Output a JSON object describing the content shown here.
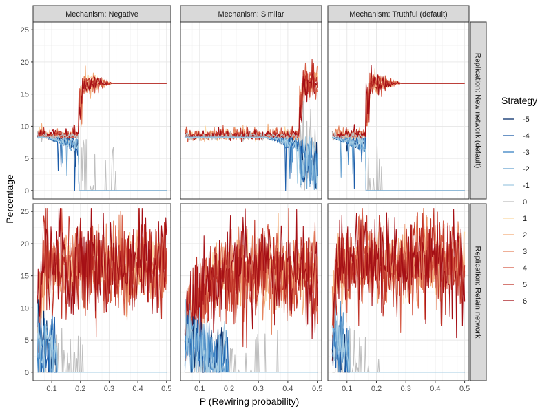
{
  "chart_data": {
    "type": "line",
    "xlabel": "P (Rewiring probability)",
    "ylabel": "Percentage",
    "xlim": [
      0.035,
      0.515
    ],
    "ylim": [
      -1.3,
      26.2
    ],
    "x_ticks": [
      0.1,
      0.2,
      0.3,
      0.4,
      0.5
    ],
    "x_tick_labels": [
      "0.1",
      "0.2",
      "0.3",
      "0.4",
      "0.5"
    ],
    "y_ticks": [
      0,
      5,
      10,
      15,
      20,
      25
    ],
    "y_tick_labels": [
      "0",
      "5",
      "10",
      "15",
      "20",
      "25"
    ],
    "x_sample": {
      "start": 0.05,
      "end": 0.5,
      "step": 0.0025
    },
    "grid": true,
    "legend": {
      "title": "Strategy",
      "position": "right",
      "entries": [
        {
          "label": "-5",
          "color": "#08306b"
        },
        {
          "label": "-4",
          "color": "#1c5ca8"
        },
        {
          "label": "-3",
          "color": "#3a82c4"
        },
        {
          "label": "-2",
          "color": "#6aa3d1"
        },
        {
          "label": "-1",
          "color": "#a6cde3"
        },
        {
          "label": "0",
          "color": "#bfbfbf"
        },
        {
          "label": "1",
          "color": "#fbd9a4"
        },
        {
          "label": "2",
          "color": "#f3ae7b"
        },
        {
          "label": "3",
          "color": "#e68560"
        },
        {
          "label": "4",
          "color": "#d65c47"
        },
        {
          "label": "5",
          "color": "#c03428"
        },
        {
          "label": "6",
          "color": "#a50f15"
        }
      ]
    },
    "col_facets": [
      "Mechanism: Negative",
      "Mechanism: Similar",
      "Mechanism: Truthful (default)"
    ],
    "row_facets": [
      "Replication: New network (default)",
      "Replication: Retain network"
    ],
    "panel_models": [
      [
        {
          "mechanism": "negative",
          "dropout": 0.195,
          "plateau": 16.67,
          "zeroed_after": 0.33
        },
        {
          "mechanism": "similar",
          "dropout": 0.44,
          "plateau": 16.67,
          "zeroed_after": 0.5
        },
        {
          "mechanism": "truthful",
          "dropout": 0.165,
          "plateau": 16.67,
          "zeroed_after": 0.23
        }
      ],
      [
        {
          "mechanism": "negative",
          "negatives_to_zero": 0.12,
          "positive_mean": 16.5,
          "noise": 3.5
        },
        {
          "mechanism": "similar",
          "negatives_to_zero": 0.2,
          "positive_mean": 15.5,
          "noise": 3.5
        },
        {
          "mechanism": "truthful",
          "negatives_to_zero": 0.11,
          "positive_mean": 16.5,
          "noise": 3.5
        }
      ]
    ]
  }
}
